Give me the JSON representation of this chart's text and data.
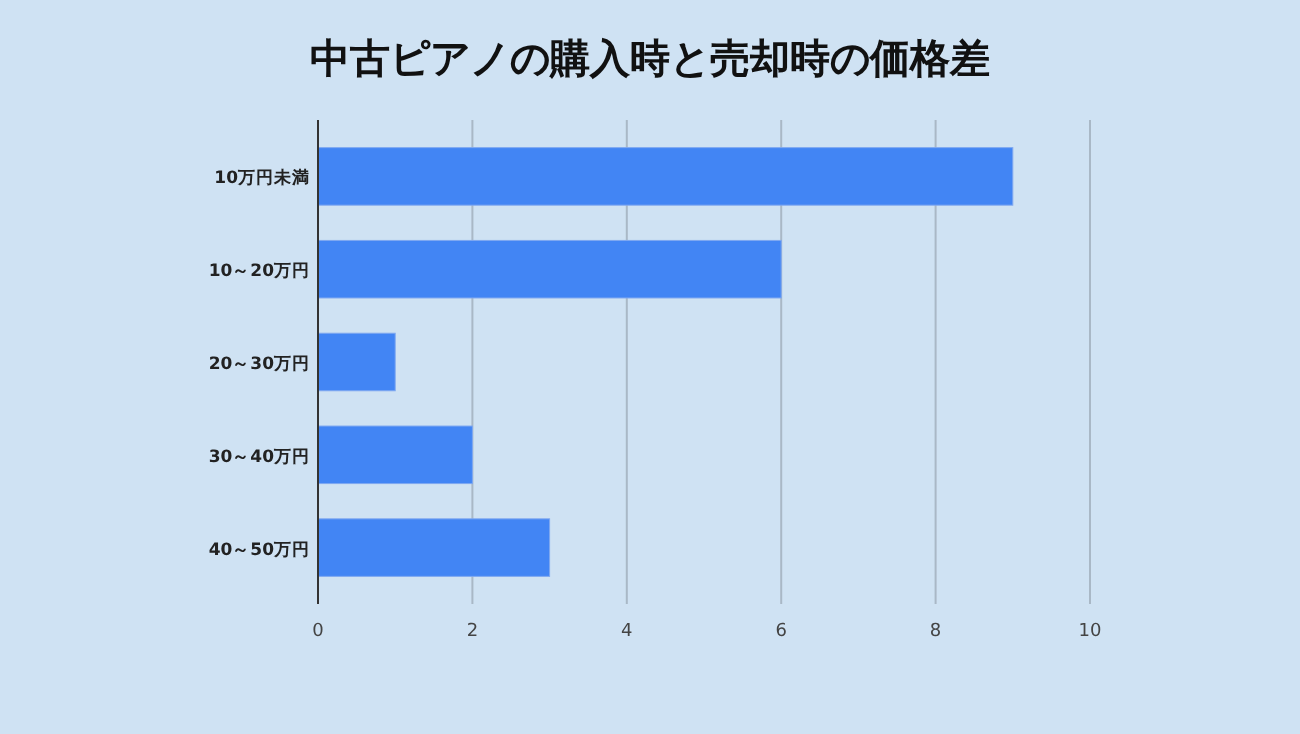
{
  "chart_data": {
    "type": "bar",
    "orientation": "horizontal",
    "title": "中古ピアノの購入時と売却時の価格差",
    "categories": [
      "10万円未満",
      "10～20万円",
      "20～30万円",
      "30～40万円",
      "40～50万円"
    ],
    "values": [
      9,
      6,
      1,
      2,
      3
    ],
    "color": "#4285f4",
    "xlim": [
      0,
      10
    ],
    "xticks": [
      0,
      2,
      4,
      6,
      8,
      10
    ],
    "grid": "x"
  }
}
